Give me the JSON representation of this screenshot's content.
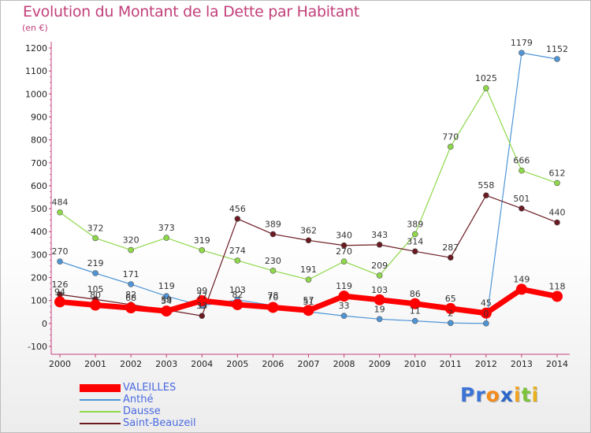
{
  "title": "Evolution du Montant de la Dette par Habitant",
  "subtitle": "(en €)",
  "brand": {
    "name": "Proxiti",
    "letters": [
      {
        "ch": "P",
        "color": "#3b73d6"
      },
      {
        "ch": "r",
        "color": "#3b73d6"
      },
      {
        "ch": "o",
        "color": "#f28c1e"
      },
      {
        "ch": "x",
        "color": "#2a67c9"
      },
      {
        "ch": "i",
        "color": "#f2a21e"
      },
      {
        "ch": "t",
        "color": "#7cc33a"
      },
      {
        "ch": "i",
        "color": "#e9b11c"
      }
    ]
  },
  "chart_data": {
    "type": "line",
    "x": [
      "2000",
      "2001",
      "2002",
      "2003",
      "2004",
      "2005",
      "2006",
      "2007",
      "2008",
      "2009",
      "2010",
      "2011",
      "2012",
      "2013",
      "2014"
    ],
    "yticks": [
      -100,
      0,
      100,
      200,
      300,
      400,
      500,
      600,
      700,
      800,
      900,
      1000,
      1100,
      1200
    ],
    "ylim": [
      -100,
      1200
    ],
    "grid": false,
    "legend_position": "bottom-left",
    "series": [
      {
        "name": "VALEILLES",
        "color": "#ff0000",
        "values": [
          94,
          80,
          68,
          54,
          99,
          82,
          70,
          57,
          119,
          103,
          86,
          65,
          45,
          149,
          118
        ],
        "labels": [
          "94",
          "80",
          "68",
          "54",
          "99",
          "82",
          "70",
          "57",
          "119",
          "103",
          "86",
          "65",
          "45",
          "149",
          "118"
        ]
      },
      {
        "name": "Anthé",
        "color": "#4f95d6",
        "values": [
          270,
          219,
          171,
          119,
          77,
          103,
          78,
          51,
          33,
          19,
          11,
          2,
          0,
          1179,
          1152
        ],
        "labels": [
          "270",
          "219",
          "171",
          "119",
          "77",
          "103",
          "78",
          "51",
          "33",
          "19",
          "11",
          "2",
          "0",
          "1179",
          "1152"
        ]
      },
      {
        "name": "Dausse",
        "color": "#8fd84a",
        "values": [
          484,
          372,
          320,
          373,
          319,
          274,
          230,
          191,
          270,
          209,
          389,
          770,
          1025,
          666,
          612
        ],
        "labels": [
          "484",
          "372",
          "320",
          "373",
          "319",
          "274",
          "230",
          "191",
          "270",
          "209",
          "389",
          "770",
          "1025",
          "666",
          "612"
        ]
      },
      {
        "name": "Saint-Beauzeil",
        "color": "#6b1a22",
        "values": [
          126,
          105,
          82,
          59,
          33,
          456,
          389,
          362,
          340,
          343,
          314,
          287,
          558,
          501,
          440
        ],
        "labels": [
          "126",
          "105",
          "82",
          "59",
          "33",
          "456",
          "389",
          "362",
          "340",
          "343",
          "314",
          "287",
          "558",
          "501",
          "440"
        ]
      }
    ]
  }
}
